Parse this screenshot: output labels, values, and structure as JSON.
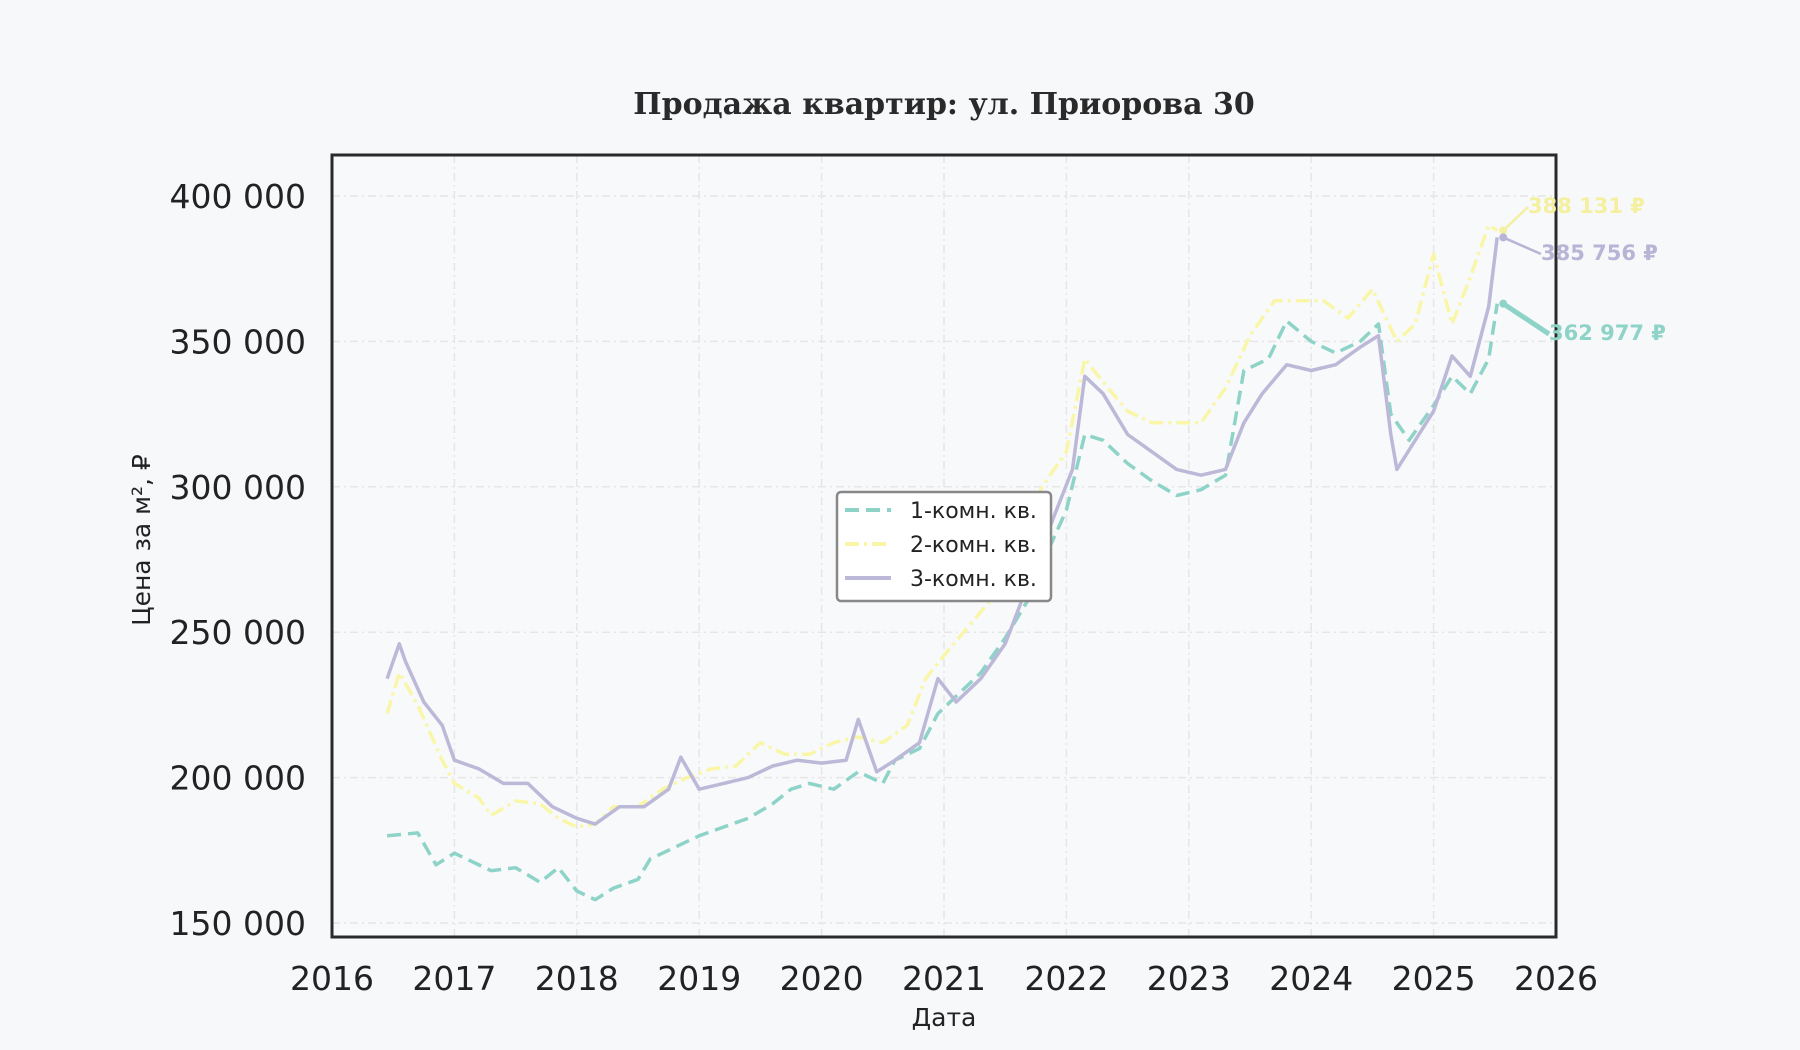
{
  "chart_data": {
    "type": "line",
    "title": "Продажа квартир: ул. Приорова 30",
    "xlabel": "Дата",
    "ylabel": "Цена за м², ₽",
    "xlim": [
      2016,
      2026
    ],
    "ylim": [
      145000,
      405000
    ],
    "x_ticks": [
      2016,
      2017,
      2018,
      2019,
      2020,
      2021,
      2022,
      2023,
      2024,
      2025,
      2026
    ],
    "y_ticks": [
      150000,
      200000,
      250000,
      300000,
      350000,
      400000
    ],
    "y_tick_labels": [
      "150 000",
      "200 000",
      "250 000",
      "300 000",
      "350 000",
      "400 000"
    ],
    "grid": true,
    "legend_position": "center",
    "series": [
      {
        "name": "1-комн. кв.",
        "color": "#8ed3c7",
        "dash": "dashed",
        "points": [
          [
            2016.45,
            180000
          ],
          [
            2016.7,
            181000
          ],
          [
            2016.85,
            170000
          ],
          [
            2017.0,
            174000
          ],
          [
            2017.3,
            168000
          ],
          [
            2017.5,
            169000
          ],
          [
            2017.7,
            164000
          ],
          [
            2017.85,
            169000
          ],
          [
            2018.0,
            161000
          ],
          [
            2018.15,
            158000
          ],
          [
            2018.3,
            162000
          ],
          [
            2018.5,
            165000
          ],
          [
            2018.6,
            172000
          ],
          [
            2018.8,
            176000
          ],
          [
            2019.0,
            180000
          ],
          [
            2019.2,
            183000
          ],
          [
            2019.4,
            186000
          ],
          [
            2019.6,
            191000
          ],
          [
            2019.75,
            196000
          ],
          [
            2019.9,
            198000
          ],
          [
            2020.1,
            196000
          ],
          [
            2020.3,
            202000
          ],
          [
            2020.5,
            198000
          ],
          [
            2020.6,
            206000
          ],
          [
            2020.8,
            210000
          ],
          [
            2020.95,
            222000
          ],
          [
            2021.1,
            228000
          ],
          [
            2021.3,
            236000
          ],
          [
            2021.5,
            248000
          ],
          [
            2021.7,
            262000
          ],
          [
            2021.85,
            278000
          ],
          [
            2022.0,
            292000
          ],
          [
            2022.15,
            318000
          ],
          [
            2022.3,
            316000
          ],
          [
            2022.5,
            308000
          ],
          [
            2022.7,
            302000
          ],
          [
            2022.9,
            297000
          ],
          [
            2023.1,
            299000
          ],
          [
            2023.3,
            304000
          ],
          [
            2023.45,
            340000
          ],
          [
            2023.65,
            344000
          ],
          [
            2023.8,
            357000
          ],
          [
            2024.0,
            350000
          ],
          [
            2024.2,
            346000
          ],
          [
            2024.4,
            350000
          ],
          [
            2024.55,
            356000
          ],
          [
            2024.65,
            325000
          ],
          [
            2024.8,
            316000
          ],
          [
            2025.0,
            328000
          ],
          [
            2025.15,
            338000
          ],
          [
            2025.3,
            332000
          ],
          [
            2025.45,
            344000
          ],
          [
            2025.52,
            362977
          ]
        ]
      },
      {
        "name": "2-комн. кв.",
        "color": "#f9f6a8",
        "dash": "dashdot",
        "points": [
          [
            2016.45,
            222000
          ],
          [
            2016.55,
            236000
          ],
          [
            2016.7,
            225000
          ],
          [
            2016.9,
            206000
          ],
          [
            2017.0,
            198000
          ],
          [
            2017.2,
            193000
          ],
          [
            2017.3,
            187000
          ],
          [
            2017.5,
            192000
          ],
          [
            2017.7,
            191000
          ],
          [
            2017.85,
            186000
          ],
          [
            2018.0,
            183000
          ],
          [
            2018.15,
            184000
          ],
          [
            2018.3,
            190000
          ],
          [
            2018.5,
            190000
          ],
          [
            2018.7,
            196000
          ],
          [
            2018.9,
            200000
          ],
          [
            2019.1,
            203000
          ],
          [
            2019.3,
            204000
          ],
          [
            2019.5,
            212000
          ],
          [
            2019.7,
            208000
          ],
          [
            2019.9,
            208000
          ],
          [
            2020.1,
            212000
          ],
          [
            2020.3,
            214000
          ],
          [
            2020.5,
            212000
          ],
          [
            2020.7,
            218000
          ],
          [
            2020.85,
            234000
          ],
          [
            2021.0,
            242000
          ],
          [
            2021.2,
            252000
          ],
          [
            2021.4,
            262000
          ],
          [
            2021.6,
            278000
          ],
          [
            2021.8,
            300000
          ],
          [
            2022.0,
            312000
          ],
          [
            2022.15,
            344000
          ],
          [
            2022.3,
            336000
          ],
          [
            2022.5,
            326000
          ],
          [
            2022.7,
            322000
          ],
          [
            2022.9,
            322000
          ],
          [
            2023.1,
            322000
          ],
          [
            2023.3,
            334000
          ],
          [
            2023.5,
            352000
          ],
          [
            2023.7,
            364000
          ],
          [
            2023.9,
            364000
          ],
          [
            2024.1,
            364000
          ],
          [
            2024.3,
            358000
          ],
          [
            2024.5,
            368000
          ],
          [
            2024.7,
            350000
          ],
          [
            2024.85,
            356000
          ],
          [
            2025.0,
            380000
          ],
          [
            2025.15,
            356000
          ],
          [
            2025.3,
            372000
          ],
          [
            2025.45,
            390000
          ],
          [
            2025.52,
            388131
          ]
        ]
      },
      {
        "name": "3-комн. кв.",
        "color": "#bcb8d8",
        "dash": "solid",
        "points": [
          [
            2016.45,
            234000
          ],
          [
            2016.55,
            246000
          ],
          [
            2016.6,
            240000
          ],
          [
            2016.75,
            226000
          ],
          [
            2016.9,
            218000
          ],
          [
            2017.0,
            206000
          ],
          [
            2017.2,
            203000
          ],
          [
            2017.4,
            198000
          ],
          [
            2017.6,
            198000
          ],
          [
            2017.8,
            190000
          ],
          [
            2018.0,
            186000
          ],
          [
            2018.15,
            184000
          ],
          [
            2018.35,
            190000
          ],
          [
            2018.55,
            190000
          ],
          [
            2018.75,
            196000
          ],
          [
            2018.85,
            207000
          ],
          [
            2019.0,
            196000
          ],
          [
            2019.2,
            198000
          ],
          [
            2019.4,
            200000
          ],
          [
            2019.6,
            204000
          ],
          [
            2019.8,
            206000
          ],
          [
            2020.0,
            205000
          ],
          [
            2020.2,
            206000
          ],
          [
            2020.3,
            220000
          ],
          [
            2020.45,
            202000
          ],
          [
            2020.6,
            206000
          ],
          [
            2020.8,
            212000
          ],
          [
            2020.95,
            234000
          ],
          [
            2021.1,
            226000
          ],
          [
            2021.3,
            234000
          ],
          [
            2021.5,
            246000
          ],
          [
            2021.7,
            268000
          ],
          [
            2021.9,
            290000
          ],
          [
            2022.05,
            306000
          ],
          [
            2022.15,
            338000
          ],
          [
            2022.3,
            332000
          ],
          [
            2022.5,
            318000
          ],
          [
            2022.7,
            312000
          ],
          [
            2022.9,
            306000
          ],
          [
            2023.1,
            304000
          ],
          [
            2023.3,
            306000
          ],
          [
            2023.45,
            322000
          ],
          [
            2023.6,
            332000
          ],
          [
            2023.8,
            342000
          ],
          [
            2024.0,
            340000
          ],
          [
            2024.2,
            342000
          ],
          [
            2024.4,
            348000
          ],
          [
            2024.55,
            352000
          ],
          [
            2024.65,
            318000
          ],
          [
            2024.7,
            306000
          ],
          [
            2024.85,
            316000
          ],
          [
            2025.0,
            326000
          ],
          [
            2025.15,
            345000
          ],
          [
            2025.3,
            338000
          ],
          [
            2025.45,
            362000
          ],
          [
            2025.52,
            385756
          ]
        ]
      }
    ],
    "annotations": [
      {
        "text": "388 131 ₽",
        "series": "2-комн. кв.",
        "color": "#f4f0a0"
      },
      {
        "text": "385 756 ₽",
        "series": "3-комн. кв.",
        "color": "#b8b4d6"
      },
      {
        "text": "362 977 ₽",
        "series": "1-комн. кв.",
        "color": "#8ed3c7"
      }
    ]
  }
}
